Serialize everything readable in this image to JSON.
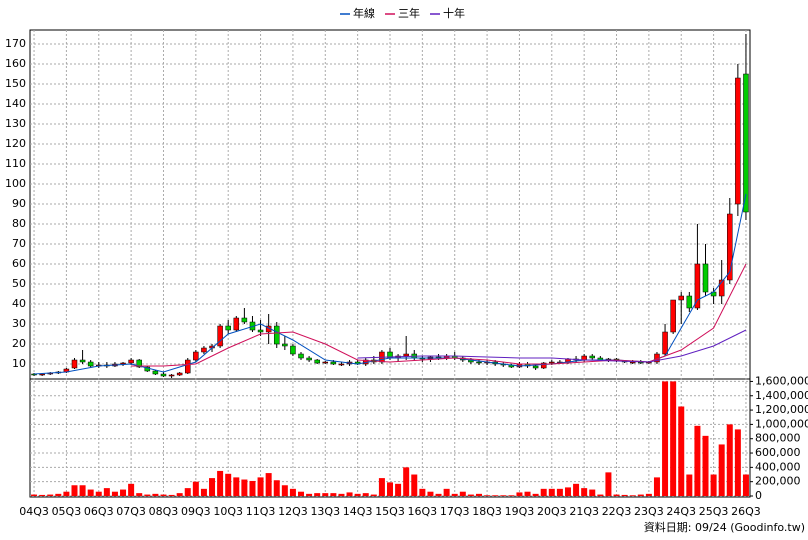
{
  "chart_data": {
    "type": "candlestick",
    "legend": "top",
    "grid": true,
    "footer": "資料日期: 09/24 (Goodinfo.tw)",
    "up_color": "#ff0000",
    "down_color": "#00cc00",
    "volume_color": "#ff0000",
    "categories": [
      "04Q3",
      null,
      null,
      null,
      "05Q3",
      null,
      null,
      null,
      "06Q3",
      null,
      null,
      null,
      "07Q3",
      null,
      null,
      null,
      "08Q3",
      null,
      null,
      null,
      "09Q3",
      null,
      null,
      null,
      "10Q3",
      null,
      null,
      null,
      "11Q3",
      null,
      null,
      null,
      "12Q3",
      null,
      null,
      null,
      "13Q3",
      null,
      null,
      null,
      "14Q3",
      null,
      null,
      null,
      "15Q3",
      null,
      null,
      null,
      "16Q3",
      null,
      null,
      null,
      "17Q3",
      null,
      null,
      null,
      "18Q3",
      null,
      null,
      null,
      "19Q3",
      null,
      null,
      null,
      "20Q3",
      null,
      null,
      null,
      "21Q3",
      null,
      null,
      null,
      "22Q3",
      null,
      null,
      null,
      "23Q3",
      null,
      null,
      null,
      "24Q3",
      null,
      null,
      null,
      "25Q3",
      null,
      null,
      null,
      "26Q3"
    ],
    "open": [
      5,
      4.5,
      5,
      5.5,
      6,
      8,
      12,
      11,
      9,
      9.5,
      9,
      10,
      10.5,
      12,
      8.5,
      6.5,
      5,
      4,
      4.5,
      5.5,
      12,
      16,
      18,
      19,
      29,
      27,
      33,
      31,
      27,
      26,
      29,
      20,
      19,
      15,
      13,
      12,
      10.5,
      11,
      10,
      10,
      11,
      10,
      12,
      11,
      16,
      13,
      14,
      15,
      13,
      12.5,
      13.5,
      13,
      14,
      13,
      12,
      11,
      10.5,
      11,
      10,
      9.5,
      8.5,
      10,
      9,
      8,
      10.5,
      11,
      11,
      12.5,
      12,
      14,
      13,
      12,
      12.5,
      11.5,
      11,
      11,
      10.5,
      11,
      15,
      26,
      42,
      44,
      38,
      60,
      46,
      44,
      52,
      90,
      155
    ],
    "high": [
      5.5,
      5.5,
      6,
      6.5,
      8,
      13,
      17,
      12,
      11,
      11,
      11,
      11,
      13,
      12.5,
      9,
      7,
      6,
      5,
      6,
      13,
      17,
      19,
      20,
      30,
      32,
      34,
      38,
      34,
      32,
      35,
      31,
      24,
      20,
      16,
      14,
      12.5,
      11.5,
      12,
      11,
      12,
      12,
      13,
      14,
      17,
      18,
      15,
      24,
      17,
      14,
      14,
      15,
      15,
      16,
      14,
      13,
      12,
      12,
      12,
      11,
      10,
      11,
      11,
      10,
      11,
      12,
      12,
      13,
      14,
      15,
      15,
      14,
      13,
      13,
      12,
      12,
      12,
      11.5,
      16,
      30,
      42,
      46,
      46,
      80,
      70,
      48,
      62,
      93,
      160,
      175
    ],
    "low": [
      4,
      4,
      4.5,
      5,
      5.5,
      7.5,
      10,
      8,
      8,
      8,
      8.5,
      9,
      9.5,
      8,
      6,
      4.5,
      3.5,
      3,
      4,
      5,
      11,
      15,
      16,
      18,
      25,
      26,
      30,
      26,
      24,
      20,
      18,
      17,
      14,
      12,
      11,
      10,
      10,
      9.5,
      9,
      9,
      9.5,
      9,
      10,
      10,
      12,
      11,
      12,
      12,
      11,
      11,
      12,
      12,
      12,
      11,
      10,
      9.5,
      9.5,
      9,
      8.5,
      8,
      8,
      8,
      7,
      7.5,
      9.5,
      10,
      10,
      11,
      11,
      12,
      11.5,
      11,
      11,
      10.5,
      10,
      10,
      10,
      10,
      14,
      25,
      30,
      36,
      37,
      44,
      40,
      40,
      50,
      84,
      82
    ],
    "close": [
      4.5,
      5,
      5.5,
      6,
      7.5,
      12,
      11,
      9,
      9.5,
      9,
      10,
      10.5,
      12,
      8.5,
      6.5,
      5,
      4,
      4.5,
      5.5,
      12,
      16,
      18,
      19,
      29,
      27,
      33,
      31,
      27,
      26,
      29,
      20,
      19,
      15,
      13,
      12,
      10.5,
      11,
      10,
      10,
      11,
      10,
      12,
      11,
      16,
      13,
      14,
      15,
      13,
      12.5,
      13.5,
      13,
      14,
      13,
      12,
      11,
      10.5,
      11,
      10,
      9.5,
      8.5,
      10,
      9,
      8,
      10.5,
      11,
      11,
      12.5,
      12,
      14,
      13,
      12,
      12.5,
      11.5,
      11,
      11,
      10.5,
      11,
      15,
      26,
      42,
      44,
      38,
      60,
      46,
      44,
      52,
      85,
      153,
      86
    ],
    "volume": [
      20000,
      15000,
      20000,
      30000,
      60000,
      150000,
      150000,
      90000,
      60000,
      110000,
      60000,
      90000,
      170000,
      40000,
      20000,
      30000,
      20000,
      15000,
      40000,
      110000,
      200000,
      100000,
      250000,
      350000,
      310000,
      260000,
      230000,
      210000,
      260000,
      320000,
      220000,
      150000,
      100000,
      60000,
      30000,
      40000,
      40000,
      40000,
      30000,
      50000,
      30000,
      40000,
      20000,
      250000,
      190000,
      170000,
      400000,
      300000,
      100000,
      60000,
      30000,
      100000,
      30000,
      60000,
      20000,
      30000,
      10000,
      10000,
      10000,
      10000,
      50000,
      60000,
      30000,
      100000,
      100000,
      100000,
      120000,
      170000,
      110000,
      90000,
      20000,
      330000,
      20000,
      15000,
      10000,
      20000,
      30000,
      260000,
      1600000,
      1600000,
      1250000,
      300000,
      980000,
      840000,
      300000,
      720000,
      1000000,
      930000,
      300000
    ],
    "series": [
      {
        "name": "年線",
        "color": "#0050c0",
        "x": [
          0,
          4,
          8,
          12,
          16,
          20,
          24,
          28,
          32,
          36,
          40,
          44,
          48,
          52,
          56,
          60,
          64,
          68,
          72,
          76,
          78,
          80,
          82,
          84,
          86,
          88
        ],
        "values": [
          5,
          6,
          9,
          10,
          6,
          11,
          25,
          30,
          22,
          12,
          10,
          13,
          13,
          13,
          11,
          9,
          10,
          12,
          12,
          11,
          14,
          28,
          42,
          46,
          56,
          95
        ]
      },
      {
        "name": "三年",
        "color": "#d0105a",
        "x": [
          12,
          16,
          20,
          24,
          28,
          32,
          36,
          40,
          44,
          48,
          52,
          56,
          60,
          64,
          68,
          72,
          76,
          80,
          84,
          88
        ],
        "values": [
          9,
          9,
          10,
          18,
          25,
          26,
          20,
          12,
          11,
          12,
          13,
          12,
          10,
          10,
          11,
          12,
          11,
          17,
          28,
          60
        ]
      },
      {
        "name": "十年",
        "color": "#6020c0",
        "x": [
          40,
          44,
          48,
          52,
          56,
          60,
          64,
          68,
          72,
          76,
          80,
          84,
          88
        ],
        "values": [
          13,
          13.5,
          14,
          14,
          13.5,
          13,
          13,
          12,
          11.5,
          11,
          14,
          19,
          27
        ]
      }
    ],
    "ylim": [
      3,
      177
    ],
    "yticks": [
      10,
      20,
      30,
      40,
      50,
      60,
      70,
      80,
      90,
      100,
      110,
      120,
      130,
      140,
      150,
      160,
      170
    ],
    "y2lim": [
      0,
      1620000
    ],
    "y2ticks": [
      0,
      {
        "value": 200000,
        "label": "200,000"
      },
      {
        "value": 400000,
        "label": "400,000"
      },
      {
        "value": 600000,
        "label": "600,000"
      },
      {
        "value": 800000,
        "label": "800,000"
      },
      {
        "value": 1000000,
        "label": "1,000,000"
      },
      {
        "value": 1200000,
        "label": "1,200,000"
      },
      {
        "value": 1400000,
        "label": "1,400,000"
      },
      {
        "value": 1600000,
        "label": "1,600,000"
      }
    ]
  }
}
